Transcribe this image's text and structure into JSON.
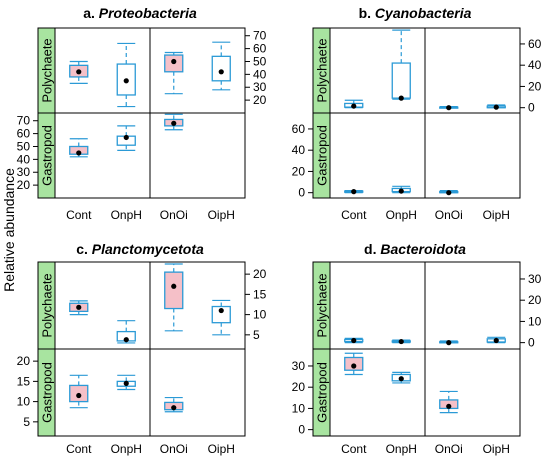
{
  "figure": {
    "ylabel": "Relative abundance",
    "colors": {
      "strip": "#a8e4a0",
      "box_stroke": "#2b9ad6",
      "box_fill_gastropod": "#f5c0c8",
      "median_dot": "#000000"
    }
  },
  "chart_data": [
    {
      "type": "box",
      "title_prefix": "a.",
      "title_name": "Proteobacteria",
      "categories": [
        "Cont",
        "OnpH",
        "OnOi",
        "OipH"
      ],
      "rows": [
        "Polychaete",
        "Gastropod"
      ],
      "yticks": {
        "Polychaete": [
          20,
          30,
          40,
          50,
          60,
          70
        ],
        "Gastropod": [
          20,
          30,
          40,
          50,
          60,
          70
        ]
      },
      "ylim": {
        "Polychaete": [
          10,
          76
        ],
        "Gastropod": [
          10,
          76
        ]
      },
      "tick_side": {
        "Polychaete": "right",
        "Gastropod": "left"
      },
      "boxes": {
        "Polychaete": [
          {
            "min": 33,
            "q1": 38,
            "median": 42,
            "q3": 47,
            "max": 50,
            "filled": true
          },
          {
            "min": 15,
            "q1": 24,
            "median": 35,
            "q3": 48,
            "max": 64,
            "filled": false
          },
          {
            "min": 25,
            "q1": 42,
            "median": 50,
            "q3": 55,
            "max": 57,
            "filled": true
          },
          {
            "min": 28,
            "q1": 35,
            "median": 42,
            "q3": 54,
            "max": 65,
            "filled": false
          }
        ],
        "Gastropod": [
          {
            "min": 42,
            "q1": 44,
            "median": 45,
            "q3": 50,
            "max": 56,
            "filled": true
          },
          {
            "min": 47,
            "q1": 51,
            "median": 57,
            "q3": 58,
            "max": 66,
            "filled": false
          },
          {
            "min": 63,
            "q1": 66,
            "median": 68,
            "q3": 71,
            "max": 75,
            "filled": true
          },
          null
        ]
      }
    },
    {
      "type": "box",
      "title_prefix": "b.",
      "title_name": "Cyanobacteria",
      "categories": [
        "Cont",
        "OnpH",
        "OnOi",
        "OipH"
      ],
      "rows": [
        "Polychaete",
        "Gastropod"
      ],
      "yticks": {
        "Polychaete": [
          0,
          20,
          40,
          60
        ],
        "Gastropod": [
          0,
          20,
          40,
          60
        ]
      },
      "ylim": {
        "Polychaete": [
          -5,
          75
        ],
        "Gastropod": [
          -5,
          75
        ]
      },
      "tick_side": {
        "Polychaete": "right",
        "Gastropod": "left"
      },
      "boxes": {
        "Polychaete": [
          {
            "min": 0,
            "q1": 0.5,
            "median": 1.5,
            "q3": 4,
            "max": 7,
            "filled": false
          },
          {
            "min": 8,
            "q1": 9,
            "median": 9,
            "q3": 42,
            "max": 73,
            "filled": false
          },
          {
            "min": 0,
            "q1": 0,
            "median": 0,
            "q3": 0.5,
            "max": 1,
            "filled": false
          },
          {
            "min": 0,
            "q1": 0,
            "median": 0.5,
            "q3": 1.5,
            "max": 2.5,
            "filled": false
          }
        ],
        "Gastropod": [
          {
            "min": 0,
            "q1": 0.5,
            "median": 1,
            "q3": 1.5,
            "max": 2,
            "filled": false
          },
          {
            "min": 0,
            "q1": 1,
            "median": 1.5,
            "q3": 4,
            "max": 6,
            "filled": false
          },
          {
            "min": 0,
            "q1": 0,
            "median": 0,
            "q3": 1,
            "max": 2,
            "filled": false
          },
          null
        ]
      }
    },
    {
      "type": "box",
      "title_prefix": "c.",
      "title_name": "Planctomycetota",
      "categories": [
        "Cont",
        "OnpH",
        "OnOi",
        "OipH"
      ],
      "rows": [
        "Polychaete",
        "Gastropod"
      ],
      "yticks": {
        "Polychaete": [
          5,
          10,
          15,
          20
        ],
        "Gastropod": [
          5,
          10,
          15,
          20
        ]
      },
      "ylim": {
        "Polychaete": [
          1.5,
          23
        ],
        "Gastropod": [
          1.5,
          23
        ]
      },
      "tick_side": {
        "Polychaete": "right",
        "Gastropod": "left"
      },
      "boxes": {
        "Polychaete": [
          {
            "min": 10,
            "q1": 10.8,
            "median": 11.8,
            "q3": 12.8,
            "max": 13.4,
            "filled": true
          },
          {
            "min": 3,
            "q1": 3.5,
            "median": 3.8,
            "q3": 5.8,
            "max": 8.5,
            "filled": false
          },
          {
            "min": 6,
            "q1": 11.5,
            "median": 17,
            "q3": 20.5,
            "max": 22.5,
            "filled": true
          },
          {
            "min": 5,
            "q1": 8,
            "median": 11,
            "q3": 12,
            "max": 13.5,
            "filled": false
          }
        ],
        "Gastropod": [
          {
            "min": 8.5,
            "q1": 10,
            "median": 11.5,
            "q3": 14,
            "max": 16.5,
            "filled": true
          },
          {
            "min": 13,
            "q1": 13.8,
            "median": 14.5,
            "q3": 15,
            "max": 16.5,
            "filled": false
          },
          {
            "min": 7.5,
            "q1": 8,
            "median": 8.5,
            "q3": 9.8,
            "max": 11,
            "filled": true
          },
          null
        ]
      }
    },
    {
      "type": "box",
      "title_prefix": "d.",
      "title_name": "Bacteroidota",
      "categories": [
        "Cont",
        "OnpH",
        "OnOi",
        "OipH"
      ],
      "rows": [
        "Polychaete",
        "Gastropod"
      ],
      "yticks": {
        "Polychaete": [
          0,
          10,
          20,
          30
        ],
        "Gastropod": [
          0,
          10,
          20,
          30
        ]
      },
      "ylim": {
        "Polychaete": [
          -3,
          38
        ],
        "Gastropod": [
          -3,
          38
        ]
      },
      "tick_side": {
        "Polychaete": "right",
        "Gastropod": "left"
      },
      "boxes": {
        "Polychaete": [
          {
            "min": 0,
            "q1": 0.5,
            "median": 1,
            "q3": 1.5,
            "max": 2,
            "filled": false
          },
          {
            "min": 0,
            "q1": 0.3,
            "median": 0.5,
            "q3": 0.8,
            "max": 1.2,
            "filled": false
          },
          {
            "min": 0,
            "q1": 0,
            "median": 0,
            "q3": 0.4,
            "max": 0.8,
            "filled": false
          },
          {
            "min": 0,
            "q1": 0.3,
            "median": 1,
            "q3": 1.8,
            "max": 2.5,
            "filled": false
          }
        ],
        "Gastropod": [
          {
            "min": 26,
            "q1": 28,
            "median": 30,
            "q3": 34,
            "max": 36,
            "filled": true
          },
          {
            "min": 22,
            "q1": 23,
            "median": 24,
            "q3": 26,
            "max": 27,
            "filled": false
          },
          {
            "min": 8,
            "q1": 10,
            "median": 11,
            "q3": 14,
            "max": 18,
            "filled": true
          },
          null
        ]
      }
    }
  ]
}
